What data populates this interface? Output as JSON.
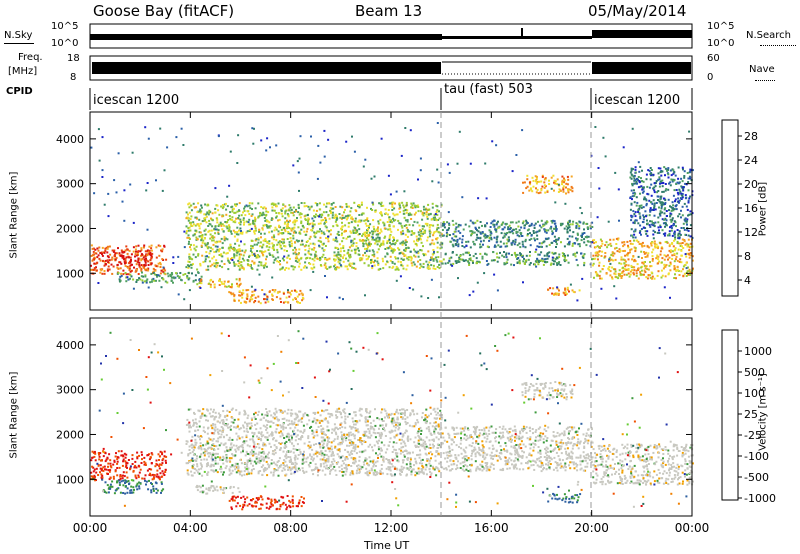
{
  "header": {
    "title": "Goose Bay (fitACF)",
    "beam": "Beam 13",
    "date": "05/May/2014"
  },
  "noise_panel": {
    "left_label": "N.Sky",
    "right_label": "N.Search",
    "left_ticks": [
      "10^5",
      "10^0"
    ],
    "right_ticks": [
      "10^5",
      "10^0"
    ]
  },
  "freq_panel": {
    "left_label_1": "Freq.",
    "left_label_2": "[MHz]",
    "left_ticks": [
      "18",
      "8"
    ],
    "right_label": "Nave",
    "right_ticks": [
      "60",
      "0"
    ]
  },
  "cpid_panel": {
    "label": "CPID",
    "segments": [
      {
        "name": "icescan 1200",
        "start_h": 0,
        "end_h": 14
      },
      {
        "name": "tau (fast) 503",
        "start_h": 14,
        "end_h": 20
      },
      {
        "name": "icescan 1200",
        "start_h": 20,
        "end_h": 24
      }
    ]
  },
  "x_axis": {
    "label": "Time UT",
    "ticks": [
      "00:00",
      "04:00",
      "08:00",
      "12:00",
      "16:00",
      "20:00",
      "00:00"
    ],
    "range_h": [
      0,
      24
    ]
  },
  "y_axis": {
    "label": "Slant Range [km]",
    "ticks": [
      "1000",
      "2000",
      "3000",
      "4000"
    ],
    "range_km": [
      180,
      4600
    ]
  },
  "power_scale": {
    "label": "Power [dB]",
    "ticks": [
      "28",
      "24",
      "20",
      "16",
      "12",
      "8",
      "4"
    ],
    "colors": [
      "#1a23c8",
      "#2a5fa8",
      "#2e7b6a",
      "#4fa060",
      "#9acd32",
      "#f0e030",
      "#f5a623",
      "#f07a18",
      "#e83f10",
      "#d81010"
    ]
  },
  "velocity_scale": {
    "label": "Velocity [m s⁻¹]",
    "ticks": [
      "1000",
      "500",
      "100",
      "25",
      "-25",
      "-100",
      "-500",
      "-1000"
    ],
    "colors": [
      "#2233aa",
      "#2d5fa0",
      "#256e5c",
      "#3c9a3c",
      "#66cc33",
      "#c8c8c0",
      "#f0a000",
      "#f08000",
      "#f05000",
      "#e01010"
    ]
  },
  "chart_data": {
    "type": "heatmap",
    "title": "Goose Bay (fitACF)",
    "xlabel": "Time UT",
    "ylabel": "Slant Range [km]",
    "xlim": [
      "00:00",
      "24:00"
    ],
    "ylim": [
      180,
      4600
    ],
    "panels": [
      {
        "name": "Power [dB]",
        "colorbar_range": [
          0,
          30
        ],
        "regions": [
          {
            "t0": 0.0,
            "t1": 3.0,
            "r0": 1000,
            "r1": 1650,
            "value": 24
          },
          {
            "t0": 0.3,
            "t1": 2.5,
            "r0": 1200,
            "r1": 1500,
            "value": 28
          },
          {
            "t0": 1.0,
            "t1": 4.5,
            "r0": 800,
            "r1": 1050,
            "value": 10
          },
          {
            "t0": 4.2,
            "t1": 6.0,
            "r0": 700,
            "r1": 900,
            "value": 18
          },
          {
            "t0": 5.5,
            "t1": 8.5,
            "r0": 350,
            "r1": 650,
            "value": 20
          },
          {
            "t0": 3.8,
            "t1": 14.0,
            "r0": 1100,
            "r1": 2600,
            "value": 14
          },
          {
            "t0": 14.0,
            "t1": 20.0,
            "r0": 1600,
            "r1": 2200,
            "value": 8
          },
          {
            "t0": 14.0,
            "t1": 20.0,
            "r0": 1200,
            "r1": 1500,
            "value": 10
          },
          {
            "t0": 17.2,
            "t1": 19.2,
            "r0": 2800,
            "r1": 3200,
            "value": 20
          },
          {
            "t0": 18.2,
            "t1": 19.5,
            "r0": 500,
            "r1": 700,
            "value": 20
          },
          {
            "t0": 20.0,
            "t1": 24.0,
            "r0": 900,
            "r1": 1800,
            "value": 18
          },
          {
            "t0": 21.5,
            "t1": 24.0,
            "r0": 1800,
            "r1": 3400,
            "value": 6
          }
        ]
      },
      {
        "name": "Velocity [m s-1]",
        "colorbar_range": [
          -1000,
          1000
        ],
        "regions": [
          {
            "t0": 0.0,
            "t1": 3.0,
            "r0": 1000,
            "r1": 1650,
            "value": -500
          },
          {
            "t0": 0.5,
            "t1": 3.0,
            "r0": 700,
            "r1": 1000,
            "value": 100
          },
          {
            "t0": 4.2,
            "t1": 6.0,
            "r0": 700,
            "r1": 900,
            "value": 0
          },
          {
            "t0": 5.5,
            "t1": 8.5,
            "r0": 350,
            "r1": 650,
            "value": -500
          },
          {
            "t0": 3.8,
            "t1": 14.0,
            "r0": 1100,
            "r1": 2600,
            "value": 0
          },
          {
            "t0": 14.0,
            "t1": 20.0,
            "r0": 1200,
            "r1": 2200,
            "value": 0
          },
          {
            "t0": 17.2,
            "t1": 19.2,
            "r0": 2800,
            "r1": 3200,
            "value": 0
          },
          {
            "t0": 18.2,
            "t1": 19.5,
            "r0": 500,
            "r1": 700,
            "value": 100
          },
          {
            "t0": 20.0,
            "t1": 24.0,
            "r0": 900,
            "r1": 1800,
            "value": 0
          }
        ]
      }
    ]
  }
}
